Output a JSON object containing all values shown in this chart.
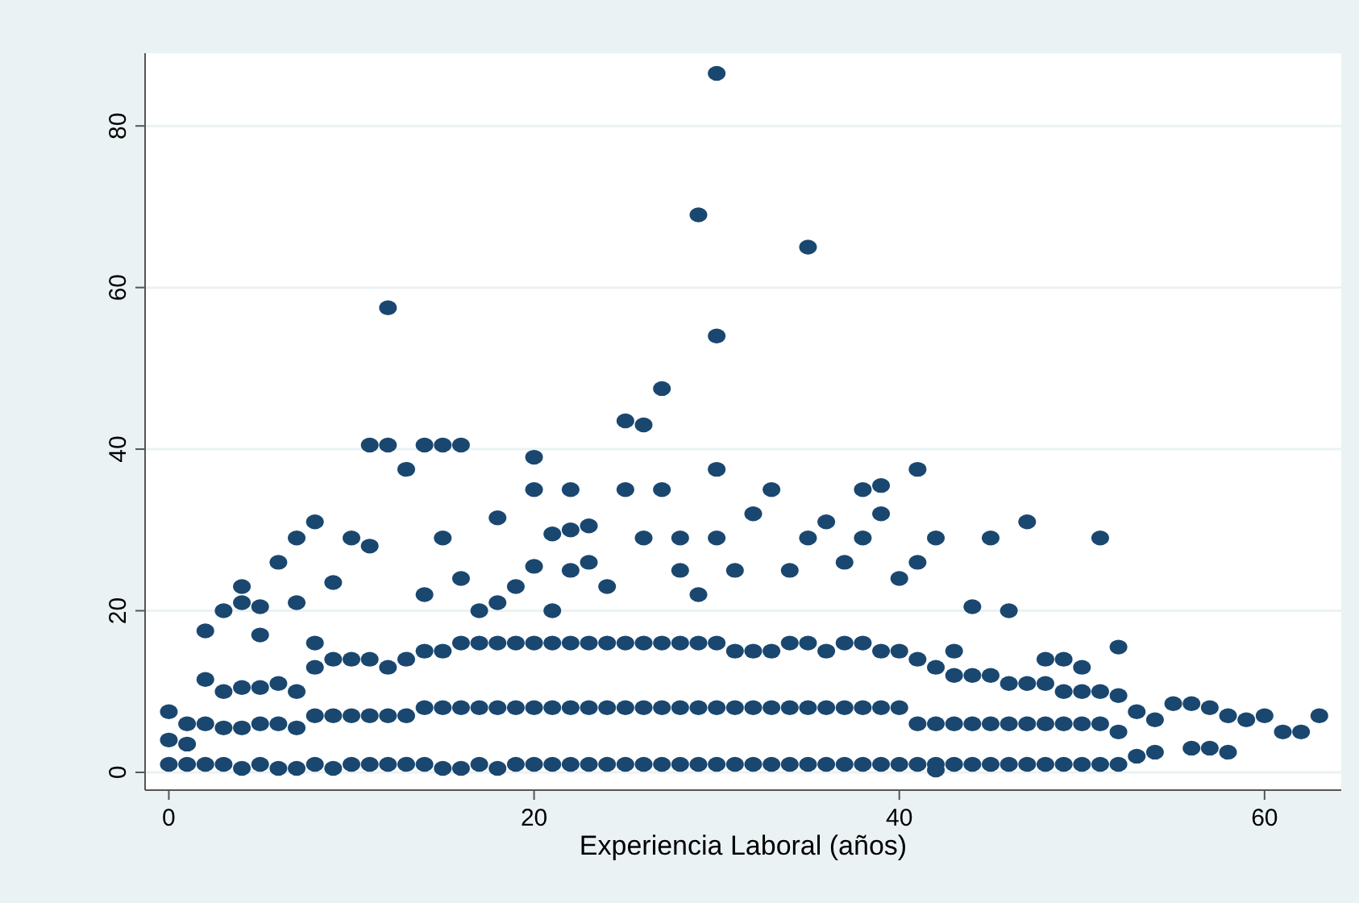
{
  "chart_data": {
    "type": "scatter",
    "xlabel": "Experiencia Laboral (años)",
    "xlim": [
      -1.3,
      64.2
    ],
    "ylim": [
      -2.2,
      89
    ],
    "xticks": [
      0,
      20,
      40,
      60
    ],
    "yticks": [
      0,
      20,
      40,
      60,
      80
    ],
    "grid": "y",
    "marker": "circle",
    "series": [
      {
        "color": "#1a476f",
        "x": [
          0,
          0,
          0,
          1,
          1,
          1,
          2,
          2,
          2,
          3,
          3,
          3,
          4,
          4,
          4,
          5,
          5,
          5,
          6,
          6,
          6,
          7,
          7,
          7,
          8,
          8,
          8,
          9,
          9,
          9,
          10,
          10,
          10,
          11,
          11,
          11,
          12,
          12,
          12,
          13,
          13,
          13,
          14,
          14,
          14,
          15,
          15,
          15,
          16,
          16,
          16,
          17,
          17,
          17,
          18,
          18,
          18,
          19,
          19,
          19,
          20,
          20,
          20,
          21,
          21,
          21,
          22,
          22,
          22,
          23,
          23,
          23,
          24,
          24,
          24,
          25,
          25,
          25,
          26,
          26,
          26,
          27,
          27,
          27,
          28,
          28,
          28,
          29,
          29,
          29,
          30,
          30,
          30,
          31,
          31,
          31,
          32,
          32,
          32,
          33,
          33,
          33,
          34,
          34,
          34,
          35,
          35,
          35,
          36,
          36,
          36,
          37,
          37,
          37,
          38,
          38,
          38,
          39,
          39,
          39,
          40,
          40,
          40,
          41,
          41,
          41,
          42,
          42,
          42,
          43,
          43,
          43,
          44,
          44,
          44,
          45,
          45,
          45,
          46,
          46,
          46,
          47,
          47,
          47,
          48,
          48,
          48,
          49,
          49,
          49,
          50,
          50,
          50,
          51,
          51,
          51,
          52,
          52,
          52,
          2,
          3,
          4,
          4,
          5,
          5,
          6,
          7,
          7,
          8,
          8,
          9,
          10,
          11,
          11,
          12,
          12,
          13,
          14,
          14,
          15,
          15,
          16,
          16,
          17,
          18,
          18,
          19,
          20,
          20,
          20,
          21,
          21,
          22,
          22,
          22,
          23,
          23,
          24,
          25,
          25,
          26,
          26,
          27,
          27,
          28,
          28,
          29,
          29,
          30,
          30,
          30,
          30,
          31,
          32,
          33,
          34,
          35,
          35,
          36,
          37,
          38,
          38,
          39,
          39,
          40,
          41,
          41,
          42,
          43,
          44,
          45,
          46,
          47,
          48,
          49,
          50,
          51,
          52,
          53,
          54,
          55,
          56,
          57,
          58,
          59,
          60,
          61,
          62,
          63,
          42,
          53,
          54,
          56,
          57,
          58
        ],
        "values": [
          1,
          4,
          7.5,
          1,
          3.5,
          6,
          1,
          6,
          11.5,
          1,
          5.5,
          10,
          0.5,
          5.5,
          10.5,
          1,
          6,
          10.5,
          0.5,
          6,
          11,
          0.5,
          5.5,
          10,
          1,
          7,
          13,
          0.5,
          7,
          14,
          1,
          7,
          14,
          1,
          7,
          14,
          1,
          7,
          13,
          1,
          7,
          14,
          1,
          8,
          15,
          0.5,
          8,
          15,
          0.5,
          8,
          16,
          1,
          8,
          16,
          0.5,
          8,
          16,
          1,
          8,
          16,
          1,
          8,
          16,
          1,
          8,
          16,
          1,
          8,
          16,
          1,
          8,
          16,
          1,
          8,
          16,
          1,
          8,
          16,
          1,
          8,
          16,
          1,
          8,
          16,
          1,
          8,
          16,
          1,
          8,
          16,
          1,
          8,
          16,
          1,
          8,
          15,
          1,
          8,
          15,
          1,
          8,
          15,
          1,
          8,
          16,
          1,
          8,
          16,
          1,
          8,
          15,
          1,
          8,
          16,
          1,
          8,
          16,
          1,
          8,
          15,
          1,
          8,
          15,
          1,
          6,
          14,
          1,
          6,
          13,
          1,
          6,
          12,
          1,
          6,
          12,
          1,
          6,
          12,
          1,
          6,
          11,
          1,
          6,
          11,
          1,
          6,
          11,
          1,
          6,
          10,
          1,
          6,
          10,
          1,
          6,
          10,
          1,
          5,
          9.5,
          17.5,
          20,
          21,
          23,
          20.5,
          17,
          26,
          29,
          21,
          31,
          16,
          23.5,
          29,
          28,
          40.5,
          40.5,
          57.5,
          37.5,
          40.5,
          22,
          40.5,
          29,
          40.5,
          24,
          20,
          31.5,
          21,
          23,
          39,
          35,
          25.5,
          29.5,
          20,
          35,
          30,
          25,
          30.5,
          26,
          23,
          43.5,
          35,
          43,
          29,
          47.5,
          35,
          29,
          25,
          69,
          22,
          86.5,
          54,
          37.5,
          29,
          25,
          32,
          35,
          25,
          65,
          29,
          31,
          26,
          35,
          29,
          35.5,
          32,
          24,
          37.5,
          26,
          29,
          15,
          20.5,
          29,
          20,
          31,
          14,
          14,
          13,
          29,
          15.5,
          7.5,
          6.5,
          8.5,
          8.5,
          8,
          7,
          6.5,
          7,
          5,
          5,
          7,
          0.3,
          2,
          2.5,
          3,
          3,
          2.5
        ]
      }
    ]
  }
}
